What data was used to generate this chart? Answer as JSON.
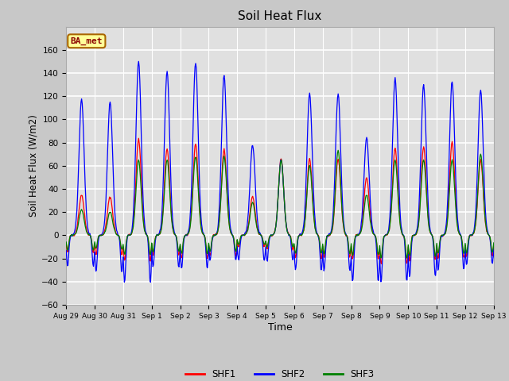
{
  "title": "Soil Heat Flux",
  "xlabel": "Time",
  "ylabel": "Soil Heat Flux (W/m2)",
  "ylim": [
    -60,
    180
  ],
  "yticks": [
    -60,
    -40,
    -20,
    0,
    20,
    40,
    60,
    80,
    100,
    120,
    140,
    160
  ],
  "fig_bg_color": "#c8c8c8",
  "plot_bg_color": "#e0e0e0",
  "annotation_text": "BA_met",
  "annotation_bg": "#ffff99",
  "annotation_border": "#aa6600",
  "annotation_text_color": "#8b0000",
  "x_tick_labels": [
    "Aug 29",
    "Aug 30",
    "Aug 31",
    "Sep 1",
    "Sep 2",
    "Sep 3",
    "Sep 4",
    "Sep 5",
    "Sep 6",
    "Sep 7",
    "Sep 8",
    "Sep 9",
    "Sep 10",
    "Sep 11",
    "Sep 12",
    "Sep 13"
  ],
  "shf2_peaks": [
    118,
    115,
    150,
    141,
    149,
    138,
    78,
    65,
    122,
    122,
    84,
    135,
    130,
    133,
    125
  ],
  "shf2_troughs": [
    -27,
    -32,
    -41,
    -28,
    -29,
    -22,
    -22,
    -22,
    -30,
    -31,
    -40,
    -40,
    -36,
    -30,
    -25
  ],
  "shf1_peaks": [
    35,
    33,
    83,
    75,
    79,
    74,
    33,
    66,
    66,
    66,
    50,
    75,
    76,
    80,
    65
  ],
  "shf1_troughs": [
    -15,
    -17,
    -22,
    -17,
    -20,
    -18,
    -10,
    -12,
    -20,
    -20,
    -20,
    -25,
    -22,
    -20,
    -18
  ],
  "shf3_peaks": [
    22,
    20,
    65,
    65,
    68,
    68,
    28,
    65,
    60,
    73,
    35,
    65,
    65,
    65,
    70
  ],
  "shf3_troughs": [
    -13,
    -12,
    -17,
    -14,
    -16,
    -14,
    -8,
    -10,
    -16,
    -16,
    -17,
    -20,
    -18,
    -16,
    -15
  ]
}
